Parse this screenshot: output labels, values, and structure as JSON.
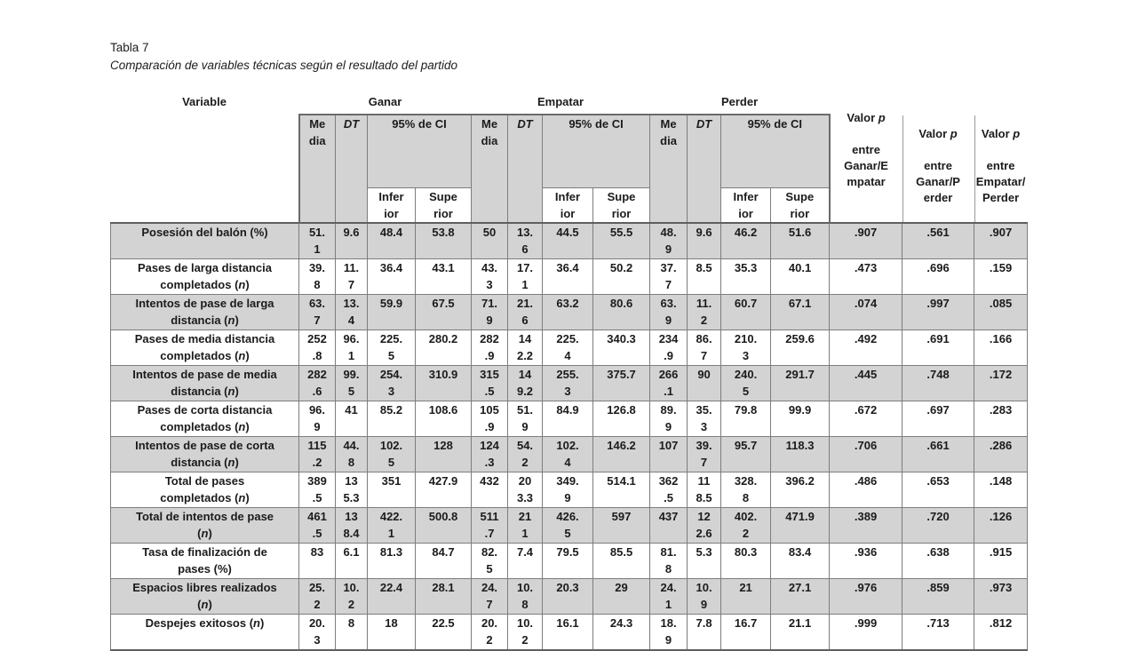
{
  "title": "Tabla 7",
  "subtitle": "Comparación de variables técnicas según el resultado del partido",
  "table": {
    "variable_header": "Variable",
    "groups": [
      {
        "label": "Ganar"
      },
      {
        "label": "Empatar"
      },
      {
        "label": "Perder"
      }
    ],
    "sub_headers": {
      "media": "Me\ndia",
      "dt": "DT",
      "ci": "95% de CI",
      "inferior": "Infer\nior",
      "superior": "Supe\nrior"
    },
    "p_headers": [
      {
        "prefix": "Valor ",
        "italic": "p",
        "rest": "entre\nGanar/E\nmpatar"
      },
      {
        "prefix": "Valor ",
        "italic": "p",
        "rest": "entre\nGanar/P\nerder"
      },
      {
        "prefix": "Valor ",
        "italic": "p",
        "rest": "entre\nEmpatar/\nPerder"
      }
    ],
    "rows": [
      {
        "variable": "Posesión del balón (%)",
        "shaded": true,
        "values": [
          "51.\n1",
          "9.6",
          "48.4",
          "53.8",
          "50",
          "13.\n6",
          "44.5",
          "55.5",
          "48.\n9",
          "9.6",
          "46.2",
          "51.6",
          ".907",
          ".561",
          ".907"
        ]
      },
      {
        "variable": "Pases de larga distancia\ncompletados (n)",
        "shaded": false,
        "values": [
          "39.\n8",
          "11.\n7",
          "36.4",
          "43.1",
          "43.\n3",
          "17.\n1",
          "36.4",
          "50.2",
          "37.\n7",
          "8.5",
          "35.3",
          "40.1",
          ".473",
          ".696",
          ".159"
        ]
      },
      {
        "variable": "Intentos de pase de larga\ndistancia (n)",
        "shaded": true,
        "values": [
          "63.\n7",
          "13.\n4",
          "59.9",
          "67.5",
          "71.\n9",
          "21.\n6",
          "63.2",
          "80.6",
          "63.\n9",
          "11.\n2",
          "60.7",
          "67.1",
          ".074",
          ".997",
          ".085"
        ]
      },
      {
        "variable": "Pases de media distancia\ncompletados (n)",
        "shaded": false,
        "values": [
          "252\n.8",
          "96.\n1",
          "225.\n5",
          "280.2",
          "282\n.9",
          "14\n2.2",
          "225.\n4",
          "340.3",
          "234\n.9",
          "86.\n7",
          "210.\n3",
          "259.6",
          ".492",
          ".691",
          ".166"
        ]
      },
      {
        "variable": "Intentos de pase de media\ndistancia (n)",
        "shaded": true,
        "values": [
          "282\n.6",
          "99.\n5",
          "254.\n3",
          "310.9",
          "315\n.5",
          "14\n9.2",
          "255.\n3",
          "375.7",
          "266\n.1",
          "90",
          "240.\n5",
          "291.7",
          ".445",
          ".748",
          ".172"
        ]
      },
      {
        "variable": "Pases de corta distancia\ncompletados (n)",
        "shaded": false,
        "values": [
          "96.\n9",
          "41",
          "85.2",
          "108.6",
          "105\n.9",
          "51.\n9",
          "84.9",
          "126.8",
          "89.\n9",
          "35.\n3",
          "79.8",
          "99.9",
          ".672",
          ".697",
          ".283"
        ]
      },
      {
        "variable": "Intentos de pase de corta\ndistancia (n)",
        "shaded": true,
        "values": [
          "115\n.2",
          "44.\n8",
          "102.\n5",
          "128",
          "124\n.3",
          "54.\n2",
          "102.\n4",
          "146.2",
          "107",
          "39.\n7",
          "95.7",
          "118.3",
          ".706",
          ".661",
          ".286"
        ]
      },
      {
        "variable": "Total de pases\ncompletados (n)",
        "shaded": false,
        "values": [
          "389\n.5",
          "13\n5.3",
          "351",
          "427.9",
          "432",
          "20\n3.3",
          "349.\n9",
          "514.1",
          "362\n.5",
          "11\n8.5",
          "328.\n8",
          "396.2",
          ".486",
          ".653",
          ".148"
        ]
      },
      {
        "variable": "Total de intentos de pase\n(n)",
        "shaded": true,
        "values": [
          "461\n.5",
          "13\n8.4",
          "422.\n1",
          "500.8",
          "511\n.7",
          "21\n1",
          "426.\n5",
          "597",
          "437",
          "12\n2.6",
          "402.\n2",
          "471.9",
          ".389",
          ".720",
          ".126"
        ]
      },
      {
        "variable": "Tasa de finalización de\npases (%)",
        "shaded": false,
        "values": [
          "83",
          "6.1",
          "81.3",
          "84.7",
          "82.\n5",
          "7.4",
          "79.5",
          "85.5",
          "81.\n8",
          "5.3",
          "80.3",
          "83.4",
          ".936",
          ".638",
          ".915"
        ]
      },
      {
        "variable": "Espacios libres realizados\n(n)",
        "shaded": true,
        "values": [
          "25.\n2",
          "10.\n2",
          "22.4",
          "28.1",
          "24.\n7",
          "10.\n8",
          "20.3",
          "29",
          "24.\n1",
          "10.\n9",
          "21",
          "27.1",
          ".976",
          ".859",
          ".973"
        ]
      },
      {
        "variable": "Despejes exitosos (n)",
        "shaded": false,
        "values": [
          "20.\n3",
          "8",
          "18",
          "22.5",
          "20.\n2",
          "10.\n2",
          "16.1",
          "24.3",
          "18.\n9",
          "7.8",
          "16.7",
          "21.1",
          ".999",
          ".713",
          ".812"
        ]
      }
    ]
  }
}
